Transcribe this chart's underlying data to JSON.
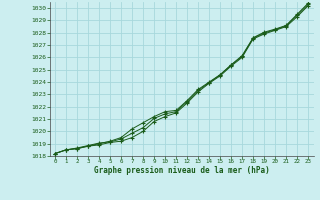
{
  "title": "Graphe pression niveau de la mer (hPa)",
  "background_color": "#cceef0",
  "grid_color": "#a8d8dc",
  "line_color": "#1a5c1a",
  "marker_color": "#1a5c1a",
  "xlim": [
    -0.5,
    23.5
  ],
  "ylim": [
    1018,
    1030.5
  ],
  "yticks": [
    1018,
    1019,
    1020,
    1021,
    1022,
    1023,
    1024,
    1025,
    1026,
    1027,
    1028,
    1029,
    1030
  ],
  "xticks": [
    0,
    1,
    2,
    3,
    4,
    5,
    6,
    7,
    8,
    9,
    10,
    11,
    12,
    13,
    14,
    15,
    16,
    17,
    18,
    19,
    20,
    21,
    22,
    23
  ],
  "series1": [
    1018.2,
    1018.5,
    1018.6,
    1018.8,
    1018.9,
    1019.1,
    1019.2,
    1019.5,
    1020.0,
    1020.8,
    1021.2,
    1021.5,
    1022.3,
    1023.2,
    1023.9,
    1024.5,
    1025.3,
    1026.0,
    1027.5,
    1027.9,
    1028.2,
    1028.5,
    1029.3,
    1030.2
  ],
  "series2": [
    1018.2,
    1018.5,
    1018.6,
    1018.8,
    1019.0,
    1019.2,
    1019.5,
    1020.2,
    1020.7,
    1021.2,
    1021.6,
    1021.7,
    1022.5,
    1023.4,
    1024.0,
    1024.6,
    1025.4,
    1026.15,
    1027.6,
    1028.05,
    1028.3,
    1028.6,
    1029.5,
    1030.4
  ],
  "series3": [
    1018.2,
    1018.5,
    1018.65,
    1018.85,
    1019.05,
    1019.15,
    1019.38,
    1019.85,
    1020.3,
    1021.05,
    1021.42,
    1021.6,
    1022.42,
    1023.32,
    1023.95,
    1024.58,
    1025.38,
    1026.08,
    1027.56,
    1027.98,
    1028.25,
    1028.56,
    1029.42,
    1030.3
  ]
}
